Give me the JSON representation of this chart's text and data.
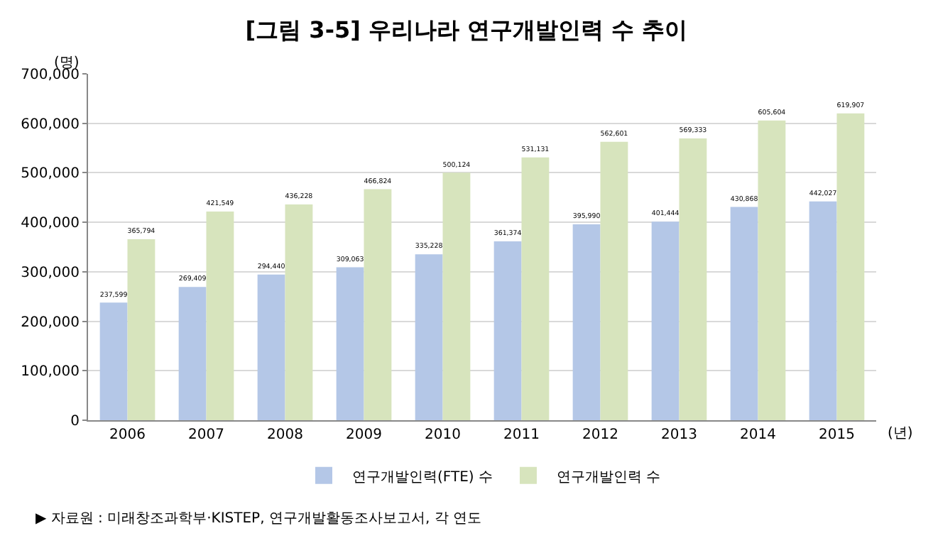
{
  "chart_data": {
    "type": "bar",
    "title": "[그림 3-5] 우리나라 연구개발인력 수 추이",
    "xlabel": "(년)",
    "ylabel": "(명)",
    "categories": [
      "2006",
      "2007",
      "2008",
      "2009",
      "2010",
      "2011",
      "2012",
      "2013",
      "2014",
      "2015"
    ],
    "series": [
      {
        "name": "연구개발인력(FTE) 수",
        "color": "#b4c7e7",
        "values": [
          237599,
          269409,
          294440,
          309063,
          335228,
          361374,
          395990,
          401444,
          430868,
          442027
        ],
        "value_labels": [
          "237,599",
          "269,409",
          "294,440",
          "309,063",
          "335,228",
          "361,374",
          "395,990",
          "401,444",
          "430,868",
          "442,027"
        ]
      },
      {
        "name": "연구개발인력 수",
        "color": "#d7e4bd",
        "values": [
          365794,
          421549,
          436228,
          466824,
          500124,
          531131,
          562601,
          569333,
          605604,
          619907
        ],
        "value_labels": [
          "365,794",
          "421,549",
          "436,228",
          "466,824",
          "500,124",
          "531,131",
          "562,601",
          "569,333",
          "605,604",
          "619,907"
        ]
      }
    ],
    "ylim": [
      0,
      700000
    ],
    "yticks": [
      {
        "value": 0,
        "label": "0"
      },
      {
        "value": 100000,
        "label": "100,000"
      },
      {
        "value": 200000,
        "label": "200,000"
      },
      {
        "value": 300000,
        "label": "300,000"
      },
      {
        "value": 400000,
        "label": "400,000"
      },
      {
        "value": 500000,
        "label": "500,000"
      },
      {
        "value": 600000,
        "label": "600,000"
      },
      {
        "value": 700000,
        "label": "700,000"
      }
    ],
    "grid": "y",
    "legend": "bottom",
    "annotations": [
      "▶ 자료원 : 미래창조과학부·KISTEP, 연구개발활동조사보고서, 각 연도"
    ]
  }
}
